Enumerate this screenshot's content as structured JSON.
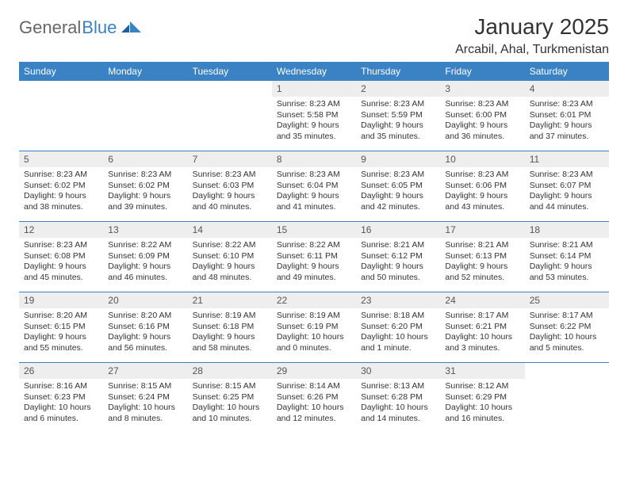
{
  "logo": {
    "part1": "General",
    "part2": "Blue"
  },
  "title": "January 2025",
  "location": "Arcabil, Ahal, Turkmenistan",
  "colors": {
    "header_bg": "#3b82c4",
    "header_text": "#ffffff",
    "daynum_bg": "#eeeeee",
    "row_border": "#3b82c4",
    "body_text": "#333333"
  },
  "weekdays": [
    "Sunday",
    "Monday",
    "Tuesday",
    "Wednesday",
    "Thursday",
    "Friday",
    "Saturday"
  ],
  "weeks": [
    [
      null,
      null,
      null,
      {
        "n": "1",
        "sr": "Sunrise: 8:23 AM",
        "ss": "Sunset: 5:58 PM",
        "dl1": "Daylight: 9 hours",
        "dl2": "and 35 minutes."
      },
      {
        "n": "2",
        "sr": "Sunrise: 8:23 AM",
        "ss": "Sunset: 5:59 PM",
        "dl1": "Daylight: 9 hours",
        "dl2": "and 35 minutes."
      },
      {
        "n": "3",
        "sr": "Sunrise: 8:23 AM",
        "ss": "Sunset: 6:00 PM",
        "dl1": "Daylight: 9 hours",
        "dl2": "and 36 minutes."
      },
      {
        "n": "4",
        "sr": "Sunrise: 8:23 AM",
        "ss": "Sunset: 6:01 PM",
        "dl1": "Daylight: 9 hours",
        "dl2": "and 37 minutes."
      }
    ],
    [
      {
        "n": "5",
        "sr": "Sunrise: 8:23 AM",
        "ss": "Sunset: 6:02 PM",
        "dl1": "Daylight: 9 hours",
        "dl2": "and 38 minutes."
      },
      {
        "n": "6",
        "sr": "Sunrise: 8:23 AM",
        "ss": "Sunset: 6:02 PM",
        "dl1": "Daylight: 9 hours",
        "dl2": "and 39 minutes."
      },
      {
        "n": "7",
        "sr": "Sunrise: 8:23 AM",
        "ss": "Sunset: 6:03 PM",
        "dl1": "Daylight: 9 hours",
        "dl2": "and 40 minutes."
      },
      {
        "n": "8",
        "sr": "Sunrise: 8:23 AM",
        "ss": "Sunset: 6:04 PM",
        "dl1": "Daylight: 9 hours",
        "dl2": "and 41 minutes."
      },
      {
        "n": "9",
        "sr": "Sunrise: 8:23 AM",
        "ss": "Sunset: 6:05 PM",
        "dl1": "Daylight: 9 hours",
        "dl2": "and 42 minutes."
      },
      {
        "n": "10",
        "sr": "Sunrise: 8:23 AM",
        "ss": "Sunset: 6:06 PM",
        "dl1": "Daylight: 9 hours",
        "dl2": "and 43 minutes."
      },
      {
        "n": "11",
        "sr": "Sunrise: 8:23 AM",
        "ss": "Sunset: 6:07 PM",
        "dl1": "Daylight: 9 hours",
        "dl2": "and 44 minutes."
      }
    ],
    [
      {
        "n": "12",
        "sr": "Sunrise: 8:23 AM",
        "ss": "Sunset: 6:08 PM",
        "dl1": "Daylight: 9 hours",
        "dl2": "and 45 minutes."
      },
      {
        "n": "13",
        "sr": "Sunrise: 8:22 AM",
        "ss": "Sunset: 6:09 PM",
        "dl1": "Daylight: 9 hours",
        "dl2": "and 46 minutes."
      },
      {
        "n": "14",
        "sr": "Sunrise: 8:22 AM",
        "ss": "Sunset: 6:10 PM",
        "dl1": "Daylight: 9 hours",
        "dl2": "and 48 minutes."
      },
      {
        "n": "15",
        "sr": "Sunrise: 8:22 AM",
        "ss": "Sunset: 6:11 PM",
        "dl1": "Daylight: 9 hours",
        "dl2": "and 49 minutes."
      },
      {
        "n": "16",
        "sr": "Sunrise: 8:21 AM",
        "ss": "Sunset: 6:12 PM",
        "dl1": "Daylight: 9 hours",
        "dl2": "and 50 minutes."
      },
      {
        "n": "17",
        "sr": "Sunrise: 8:21 AM",
        "ss": "Sunset: 6:13 PM",
        "dl1": "Daylight: 9 hours",
        "dl2": "and 52 minutes."
      },
      {
        "n": "18",
        "sr": "Sunrise: 8:21 AM",
        "ss": "Sunset: 6:14 PM",
        "dl1": "Daylight: 9 hours",
        "dl2": "and 53 minutes."
      }
    ],
    [
      {
        "n": "19",
        "sr": "Sunrise: 8:20 AM",
        "ss": "Sunset: 6:15 PM",
        "dl1": "Daylight: 9 hours",
        "dl2": "and 55 minutes."
      },
      {
        "n": "20",
        "sr": "Sunrise: 8:20 AM",
        "ss": "Sunset: 6:16 PM",
        "dl1": "Daylight: 9 hours",
        "dl2": "and 56 minutes."
      },
      {
        "n": "21",
        "sr": "Sunrise: 8:19 AM",
        "ss": "Sunset: 6:18 PM",
        "dl1": "Daylight: 9 hours",
        "dl2": "and 58 minutes."
      },
      {
        "n": "22",
        "sr": "Sunrise: 8:19 AM",
        "ss": "Sunset: 6:19 PM",
        "dl1": "Daylight: 10 hours",
        "dl2": "and 0 minutes."
      },
      {
        "n": "23",
        "sr": "Sunrise: 8:18 AM",
        "ss": "Sunset: 6:20 PM",
        "dl1": "Daylight: 10 hours",
        "dl2": "and 1 minute."
      },
      {
        "n": "24",
        "sr": "Sunrise: 8:17 AM",
        "ss": "Sunset: 6:21 PM",
        "dl1": "Daylight: 10 hours",
        "dl2": "and 3 minutes."
      },
      {
        "n": "25",
        "sr": "Sunrise: 8:17 AM",
        "ss": "Sunset: 6:22 PM",
        "dl1": "Daylight: 10 hours",
        "dl2": "and 5 minutes."
      }
    ],
    [
      {
        "n": "26",
        "sr": "Sunrise: 8:16 AM",
        "ss": "Sunset: 6:23 PM",
        "dl1": "Daylight: 10 hours",
        "dl2": "and 6 minutes."
      },
      {
        "n": "27",
        "sr": "Sunrise: 8:15 AM",
        "ss": "Sunset: 6:24 PM",
        "dl1": "Daylight: 10 hours",
        "dl2": "and 8 minutes."
      },
      {
        "n": "28",
        "sr": "Sunrise: 8:15 AM",
        "ss": "Sunset: 6:25 PM",
        "dl1": "Daylight: 10 hours",
        "dl2": "and 10 minutes."
      },
      {
        "n": "29",
        "sr": "Sunrise: 8:14 AM",
        "ss": "Sunset: 6:26 PM",
        "dl1": "Daylight: 10 hours",
        "dl2": "and 12 minutes."
      },
      {
        "n": "30",
        "sr": "Sunrise: 8:13 AM",
        "ss": "Sunset: 6:28 PM",
        "dl1": "Daylight: 10 hours",
        "dl2": "and 14 minutes."
      },
      {
        "n": "31",
        "sr": "Sunrise: 8:12 AM",
        "ss": "Sunset: 6:29 PM",
        "dl1": "Daylight: 10 hours",
        "dl2": "and 16 minutes."
      },
      null
    ]
  ]
}
